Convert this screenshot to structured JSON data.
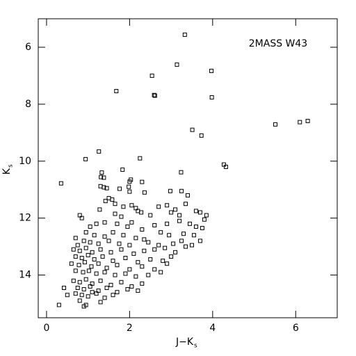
{
  "chart_data": {
    "type": "scatter",
    "annotation": "2MASS W43",
    "xlabel": "J−K",
    "xlabel_subscript": "s",
    "ylabel": "K",
    "ylabel_subscript": "s",
    "xlim": [
      -0.2,
      7
    ],
    "xticks": [
      0,
      2,
      4,
      6
    ],
    "ylim": [
      15.5,
      5
    ],
    "yticks": [
      6,
      8,
      10,
      12,
      14
    ],
    "color": "#000000",
    "x": [
      3.33,
      3.14,
      3.97,
      2.54,
      2.59,
      2.61,
      1.68,
      3.98,
      3.51,
      3.73,
      5.51,
      6.1,
      6.29,
      1.26,
      0.94,
      2.25,
      4.27,
      4.32,
      3.24,
      0.35,
      1.83,
      1.33,
      1.38,
      1.31,
      2.03,
      2.0,
      2.3,
      1.76,
      1.3,
      1.38,
      1.45,
      1.98,
      2.0,
      2.98,
      3.25,
      3.4,
      2.36,
      1.5,
      1.42,
      1.58,
      1.65,
      1.85,
      2.05,
      2.2,
      2.28,
      2.7,
      2.9,
      3.1,
      3.6,
      3.7,
      3.85,
      3.2,
      1.28,
      1.65,
      1.8,
      0.8,
      0.85,
      2.5,
      3.0,
      3.35,
      2.15,
      1.05,
      1.2,
      1.4,
      1.7,
      1.95,
      2.05,
      2.3,
      2.6,
      2.9,
      3.2,
      3.45,
      3.6,
      3.75,
      3.8,
      0.95,
      1.15,
      1.4,
      1.6,
      1.85,
      2.15,
      2.35,
      2.75,
      2.95,
      3.3,
      3.55,
      0.7,
      0.9,
      1.05,
      1.25,
      1.5,
      1.75,
      2.0,
      2.45,
      2.7,
      3.05,
      3.25,
      3.5,
      3.7,
      0.75,
      0.65,
      0.8,
      0.95,
      1.1,
      1.3,
      1.55,
      1.8,
      2.1,
      2.35,
      2.6,
      2.85,
      3.1,
      3.35,
      0.7,
      0.85,
      1.0,
      1.15,
      1.35,
      1.6,
      1.9,
      2.2,
      2.5,
      2.8,
      3.0,
      0.6,
      0.78,
      0.92,
      1.08,
      1.25,
      1.45,
      1.7,
      2.0,
      2.3,
      2.6,
      2.9,
      0.7,
      0.88,
      1.02,
      1.2,
      1.4,
      1.65,
      1.9,
      2.15,
      2.45,
      2.75,
      0.65,
      0.8,
      0.95,
      1.1,
      1.3,
      1.55,
      1.8,
      2.05,
      2.3,
      0.75,
      0.9,
      1.05,
      1.25,
      1.45,
      1.7,
      1.95,
      2.2,
      0.7,
      0.85,
      1.0,
      1.2,
      1.4,
      1.6,
      0.8,
      1.3,
      0.95,
      0.3,
      0.42,
      0.5,
      0.9,
      1.1
    ],
    "values": [
      5.56,
      6.61,
      6.83,
      7.0,
      7.68,
      7.7,
      7.54,
      7.76,
      8.9,
      9.1,
      8.71,
      8.63,
      8.59,
      9.66,
      9.93,
      9.9,
      10.12,
      10.2,
      10.39,
      10.78,
      10.3,
      10.4,
      10.58,
      10.56,
      10.65,
      10.72,
      10.73,
      10.97,
      10.88,
      10.92,
      10.95,
      10.9,
      11.07,
      11.05,
      11.05,
      11.2,
      11.1,
      11.3,
      11.4,
      11.35,
      11.5,
      11.6,
      11.55,
      11.75,
      11.8,
      11.6,
      11.55,
      11.7,
      11.75,
      11.8,
      11.9,
      11.9,
      11.7,
      11.85,
      11.95,
      11.9,
      12.0,
      11.9,
      11.8,
      11.5,
      11.65,
      12.3,
      12.2,
      12.15,
      12.2,
      12.3,
      12.15,
      12.4,
      12.25,
      12.2,
      12.1,
      12.2,
      12.3,
      12.35,
      12.05,
      12.5,
      12.6,
      12.65,
      12.5,
      12.6,
      12.7,
      12.75,
      12.5,
      12.6,
      12.55,
      12.6,
      12.7,
      12.8,
      12.85,
      12.9,
      12.8,
      12.9,
      12.95,
      12.85,
      12.95,
      12.9,
      12.8,
      12.95,
      12.8,
      12.95,
      13.1,
      13.15,
      13.05,
      13.2,
      13.1,
      13.2,
      13.1,
      13.25,
      13.15,
      13.1,
      13.05,
      13.2,
      13.0,
      13.35,
      13.4,
      13.3,
      13.45,
      13.35,
      13.5,
      13.4,
      13.55,
      13.45,
      13.5,
      13.35,
      13.6,
      13.65,
      13.55,
      13.7,
      13.6,
      13.75,
      13.65,
      13.8,
      13.7,
      13.8,
      13.6,
      13.85,
      13.9,
      13.85,
      13.95,
      13.9,
      14.0,
      13.95,
      14.05,
      14.0,
      13.9,
      14.2,
      14.25,
      14.15,
      14.3,
      14.2,
      14.35,
      14.25,
      14.4,
      14.3,
      14.45,
      14.5,
      14.4,
      14.55,
      14.45,
      14.6,
      14.5,
      14.55,
      14.65,
      14.7,
      14.75,
      14.65,
      14.8,
      14.7,
      14.9,
      14.95,
      15.05,
      15.05,
      14.45,
      14.7,
      15.1,
      14.6
    ]
  }
}
